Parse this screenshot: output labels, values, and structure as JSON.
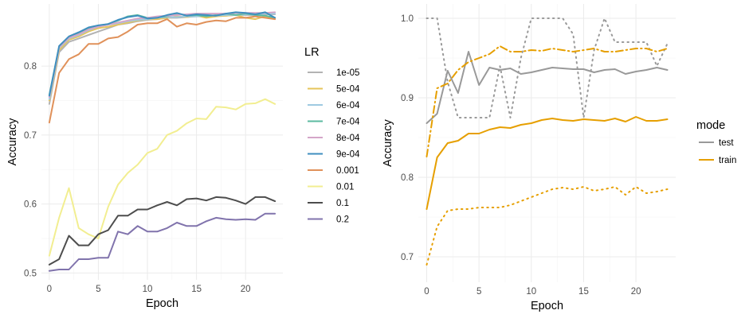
{
  "chart_data": [
    {
      "type": "line",
      "xlabel": "Epoch",
      "ylabel": "Accuracy",
      "xlim": [
        -0.8,
        23.8
      ],
      "ylim": [
        0.49,
        0.89
      ],
      "xticks": [
        0,
        5,
        10,
        15,
        20
      ],
      "yticks": [
        0.5,
        0.6,
        0.7,
        0.8
      ],
      "ytick_labels": [
        "0.5",
        "0.6",
        "0.7",
        "0.8"
      ],
      "grid": true,
      "legend": {
        "title": "LR",
        "placement": "right"
      },
      "x": [
        0,
        1,
        2,
        3,
        4,
        5,
        6,
        7,
        8,
        9,
        10,
        11,
        12,
        13,
        14,
        15,
        16,
        17,
        18,
        19,
        20,
        21,
        22,
        23
      ],
      "series": [
        {
          "name": "1e-05",
          "color": "#b3b3b3",
          "values": [
            0.745,
            0.82,
            0.835,
            0.84,
            0.845,
            0.85,
            0.855,
            0.86,
            0.862,
            0.865,
            0.867,
            0.868,
            0.87,
            0.87,
            0.871,
            0.872,
            0.872,
            0.873,
            0.873,
            0.874,
            0.874,
            0.874,
            0.875,
            0.875
          ]
        },
        {
          "name": "5e-04",
          "color": "#e6c45a",
          "values": [
            0.75,
            0.823,
            0.838,
            0.843,
            0.85,
            0.855,
            0.857,
            0.86,
            0.863,
            0.866,
            0.868,
            0.868,
            0.87,
            0.872,
            0.871,
            0.873,
            0.87,
            0.872,
            0.873,
            0.874,
            0.87,
            0.868,
            0.872,
            0.868
          ]
        },
        {
          "name": "6e-04",
          "color": "#9ecae1",
          "values": [
            0.752,
            0.826,
            0.84,
            0.845,
            0.852,
            0.857,
            0.86,
            0.862,
            0.865,
            0.867,
            0.868,
            0.87,
            0.871,
            0.871,
            0.872,
            0.872,
            0.873,
            0.873,
            0.874,
            0.874,
            0.875,
            0.875,
            0.876,
            0.876
          ]
        },
        {
          "name": "7e-04",
          "color": "#5bbaa0",
          "values": [
            0.758,
            0.828,
            0.842,
            0.847,
            0.854,
            0.858,
            0.861,
            0.866,
            0.872,
            0.874,
            0.87,
            0.871,
            0.872,
            0.876,
            0.873,
            0.874,
            0.872,
            0.874,
            0.876,
            0.874,
            0.876,
            0.874,
            0.873,
            0.87
          ]
        },
        {
          "name": "8e-04",
          "color": "#d4a6c8",
          "values": [
            0.755,
            0.827,
            0.841,
            0.846,
            0.853,
            0.857,
            0.86,
            0.863,
            0.866,
            0.869,
            0.87,
            0.872,
            0.873,
            0.874,
            0.875,
            0.876,
            0.876,
            0.876,
            0.876,
            0.877,
            0.877,
            0.877,
            0.877,
            0.878
          ]
        },
        {
          "name": "9e-04",
          "color": "#3f8fbf",
          "values": [
            0.757,
            0.829,
            0.843,
            0.849,
            0.856,
            0.859,
            0.861,
            0.867,
            0.871,
            0.873,
            0.869,
            0.87,
            0.874,
            0.877,
            0.873,
            0.875,
            0.874,
            0.873,
            0.876,
            0.878,
            0.877,
            0.875,
            0.878,
            0.87
          ]
        },
        {
          "name": "0.001",
          "color": "#e0915a",
          "values": [
            0.718,
            0.79,
            0.81,
            0.817,
            0.832,
            0.832,
            0.84,
            0.842,
            0.85,
            0.86,
            0.862,
            0.862,
            0.868,
            0.857,
            0.862,
            0.86,
            0.864,
            0.866,
            0.865,
            0.87,
            0.87,
            0.872,
            0.87,
            0.868
          ]
        },
        {
          "name": "0.01",
          "color": "#f2ee91",
          "values": [
            0.525,
            0.58,
            0.623,
            0.565,
            0.556,
            0.55,
            0.596,
            0.628,
            0.645,
            0.657,
            0.674,
            0.68,
            0.7,
            0.706,
            0.717,
            0.724,
            0.723,
            0.741,
            0.74,
            0.737,
            0.745,
            0.746,
            0.752,
            0.745
          ]
        },
        {
          "name": "0.1",
          "color": "#4d4d4d",
          "values": [
            0.512,
            0.52,
            0.554,
            0.54,
            0.54,
            0.556,
            0.562,
            0.583,
            0.583,
            0.592,
            0.592,
            0.598,
            0.603,
            0.598,
            0.607,
            0.608,
            0.605,
            0.61,
            0.609,
            0.605,
            0.6,
            0.61,
            0.61,
            0.604
          ]
        },
        {
          "name": "0.2",
          "color": "#8073ac",
          "values": [
            0.503,
            0.505,
            0.505,
            0.52,
            0.52,
            0.522,
            0.522,
            0.56,
            0.556,
            0.568,
            0.56,
            0.56,
            0.565,
            0.573,
            0.568,
            0.568,
            0.575,
            0.58,
            0.578,
            0.577,
            0.578,
            0.577,
            0.586,
            0.586
          ]
        }
      ]
    },
    {
      "type": "line",
      "xlabel": "Epoch",
      "ylabel": "Accuracy",
      "xlim": [
        -0.8,
        23.8
      ],
      "ylim": [
        0.668,
        1.018
      ],
      "xticks": [
        0,
        5,
        10,
        15,
        20
      ],
      "yticks": [
        0.7,
        0.8,
        0.9,
        1.0
      ],
      "ytick_labels": [
        "0.7",
        "0.8",
        "0.9",
        "1.0"
      ],
      "grid": true,
      "legend": {
        "title": "mode",
        "placement": "right"
      },
      "legend_entries": [
        {
          "name": "test",
          "color": "#999999"
        },
        {
          "name": "train",
          "color": "#e69f00"
        }
      ],
      "x": [
        0,
        1,
        2,
        3,
        4,
        5,
        6,
        7,
        8,
        9,
        10,
        11,
        12,
        13,
        14,
        15,
        16,
        17,
        18,
        19,
        20,
        21,
        22,
        23
      ],
      "series": [
        {
          "mode": "test",
          "dash": "solid",
          "color": "#999999",
          "values": [
            0.868,
            0.88,
            0.934,
            0.906,
            0.958,
            0.916,
            0.938,
            0.935,
            0.937,
            0.93,
            0.932,
            0.935,
            0.938,
            0.937,
            0.936,
            0.936,
            0.932,
            0.935,
            0.936,
            0.93,
            0.933,
            0.935,
            0.938,
            0.935
          ]
        },
        {
          "mode": "test",
          "dash": "dot",
          "color": "#999999",
          "values": [
            1.0,
            1.0,
            0.92,
            0.875,
            0.875,
            0.875,
            0.875,
            0.94,
            0.875,
            0.95,
            1.0,
            1.0,
            1.0,
            1.0,
            0.98,
            0.875,
            0.96,
            1.0,
            0.97,
            0.97,
            0.97,
            0.97,
            0.94,
            0.968
          ]
        },
        {
          "mode": "train",
          "dash": "solid",
          "color": "#e69f00",
          "values": [
            0.76,
            0.825,
            0.843,
            0.846,
            0.855,
            0.855,
            0.86,
            0.863,
            0.862,
            0.866,
            0.868,
            0.872,
            0.874,
            0.872,
            0.871,
            0.873,
            0.872,
            0.871,
            0.874,
            0.87,
            0.876,
            0.871,
            0.871,
            0.873
          ]
        },
        {
          "mode": "train",
          "dash": "dashdot",
          "color": "#e69f00",
          "values": [
            0.826,
            0.912,
            0.918,
            0.935,
            0.945,
            0.95,
            0.955,
            0.965,
            0.958,
            0.958,
            0.96,
            0.959,
            0.962,
            0.96,
            0.958,
            0.96,
            0.962,
            0.958,
            0.958,
            0.96,
            0.962,
            0.962,
            0.958,
            0.962
          ]
        },
        {
          "mode": "train",
          "dash": "dot",
          "color": "#e69f00",
          "values": [
            0.69,
            0.738,
            0.758,
            0.76,
            0.76,
            0.762,
            0.762,
            0.762,
            0.765,
            0.77,
            0.775,
            0.78,
            0.785,
            0.787,
            0.785,
            0.788,
            0.783,
            0.785,
            0.788,
            0.778,
            0.788,
            0.78,
            0.782,
            0.785
          ]
        }
      ]
    }
  ]
}
